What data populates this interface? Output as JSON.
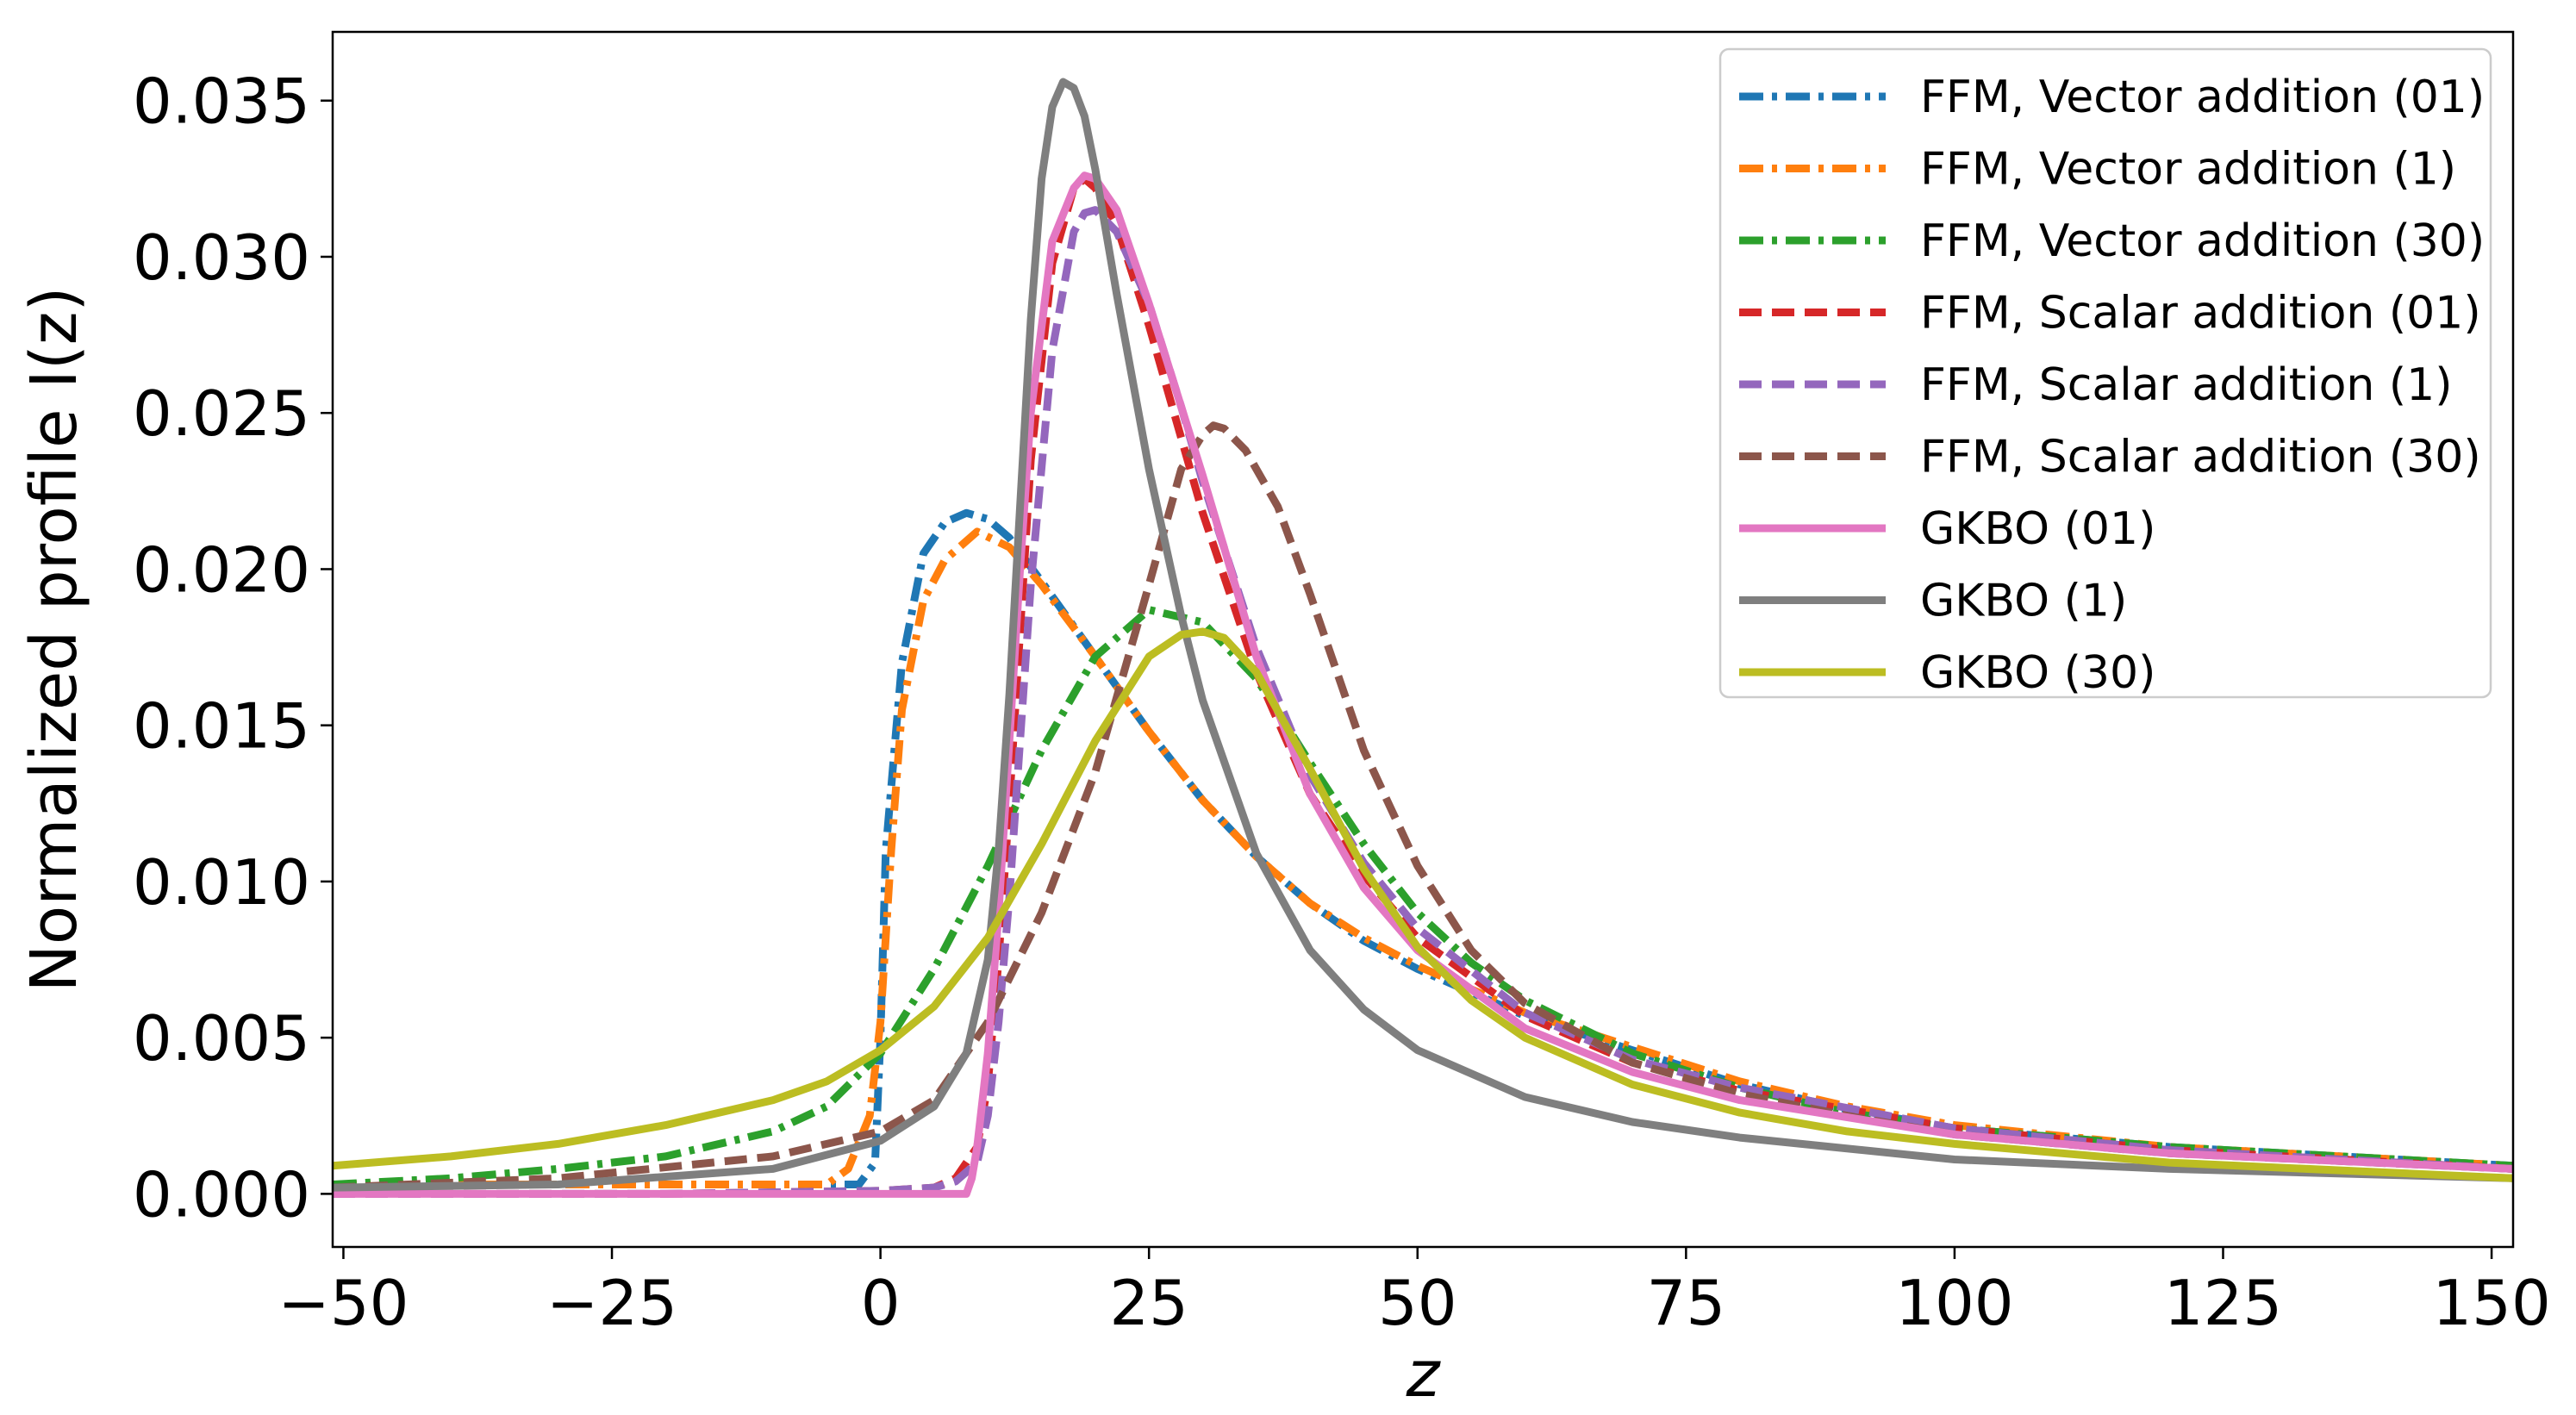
{
  "chart_data": {
    "type": "line",
    "title": "",
    "xlabel": "z",
    "ylabel": "Normalized profile I(z)",
    "xlim": [
      -51,
      152
    ],
    "ylim": [
      -0.0017,
      0.0372
    ],
    "xticks": [
      -50,
      -25,
      0,
      25,
      50,
      75,
      100,
      125,
      150
    ],
    "xtick_labels": [
      "−50",
      "−25",
      "0",
      "25",
      "50",
      "75",
      "100",
      "125",
      "150"
    ],
    "yticks": [
      0.0,
      0.005,
      0.01,
      0.015,
      0.02,
      0.025,
      0.03,
      0.035
    ],
    "ytick_labels": [
      "0.000",
      "0.005",
      "0.010",
      "0.015",
      "0.020",
      "0.025",
      "0.030",
      "0.035"
    ],
    "grid": false,
    "legend_position": "top-right",
    "series": [
      {
        "name": "FFM, Vector addition (01)",
        "color": "#1f77b4",
        "dash": "dashdot",
        "x": [
          -51,
          -30,
          -10,
          -2,
          -0.5,
          0,
          0.5,
          2,
          4,
          6,
          8,
          10,
          12,
          15,
          20,
          25,
          30,
          35,
          40,
          45,
          50,
          60,
          70,
          80,
          90,
          100,
          120,
          152
        ],
        "y": [
          0.0003,
          0.0003,
          0.0003,
          0.0003,
          0.001,
          0.005,
          0.011,
          0.017,
          0.0205,
          0.0215,
          0.0218,
          0.0216,
          0.021,
          0.0196,
          0.0172,
          0.0148,
          0.0126,
          0.0108,
          0.0093,
          0.0081,
          0.0072,
          0.0057,
          0.0046,
          0.0035,
          0.0027,
          0.0021,
          0.0015,
          0.0009
        ]
      },
      {
        "name": "FFM, Vector addition (1)",
        "color": "#ff7f0e",
        "dash": "dashdot",
        "x": [
          -51,
          -30,
          -10,
          -5,
          -3,
          -1,
          0,
          1,
          2,
          4,
          6,
          9,
          12,
          15,
          20,
          25,
          30,
          35,
          40,
          45,
          50,
          60,
          70,
          80,
          90,
          100,
          120,
          152
        ],
        "y": [
          0.0003,
          0.0003,
          0.0003,
          0.0003,
          0.0008,
          0.0025,
          0.0055,
          0.011,
          0.0155,
          0.019,
          0.0203,
          0.0212,
          0.0207,
          0.0195,
          0.0172,
          0.0148,
          0.0126,
          0.0108,
          0.0093,
          0.0082,
          0.0073,
          0.0058,
          0.0047,
          0.0036,
          0.0028,
          0.0022,
          0.0015,
          0.0009
        ]
      },
      {
        "name": "FFM, Vector addition (30)",
        "color": "#2ca02c",
        "dash": "dashdot",
        "x": [
          -51,
          -40,
          -30,
          -20,
          -10,
          -5,
          0,
          5,
          10,
          15,
          20,
          25,
          30,
          35,
          40,
          45,
          50,
          55,
          60,
          70,
          80,
          90,
          100,
          120,
          152
        ],
        "y": [
          0.0003,
          0.0005,
          0.0008,
          0.0012,
          0.002,
          0.0028,
          0.0045,
          0.0072,
          0.0105,
          0.0142,
          0.0172,
          0.0187,
          0.0183,
          0.0165,
          0.0138,
          0.0112,
          0.009,
          0.0074,
          0.0062,
          0.0045,
          0.0034,
          0.0026,
          0.0021,
          0.0015,
          0.0009
        ]
      },
      {
        "name": "FFM, Scalar addition (01)",
        "color": "#d62728",
        "dash": "dashed",
        "x": [
          -51,
          -20,
          0,
          5,
          7,
          9,
          10,
          11,
          12,
          13,
          14,
          16,
          18,
          19,
          20,
          22,
          25,
          28,
          30,
          35,
          40,
          45,
          50,
          60,
          70,
          80,
          100,
          120,
          152
        ],
        "y": [
          0.0,
          0.0,
          0.0001,
          0.0002,
          0.0005,
          0.0015,
          0.0035,
          0.0075,
          0.0125,
          0.018,
          0.0235,
          0.0298,
          0.0322,
          0.0325,
          0.0322,
          0.031,
          0.0278,
          0.0242,
          0.0218,
          0.0167,
          0.0128,
          0.0102,
          0.0082,
          0.0057,
          0.0042,
          0.0033,
          0.0021,
          0.0014,
          0.0008
        ]
      },
      {
        "name": "FFM, Scalar addition (1)",
        "color": "#9467bd",
        "dash": "dashed",
        "x": [
          -51,
          -20,
          0,
          5,
          7,
          9,
          10,
          11,
          12,
          13,
          14,
          16,
          18,
          19,
          20,
          22,
          25,
          28,
          30,
          35,
          40,
          45,
          50,
          60,
          70,
          80,
          100,
          120,
          152
        ],
        "y": [
          0.0,
          0.0,
          0.0001,
          0.0002,
          0.0004,
          0.001,
          0.0025,
          0.0055,
          0.0095,
          0.0145,
          0.0195,
          0.027,
          0.0308,
          0.0314,
          0.0315,
          0.0308,
          0.0285,
          0.0252,
          0.0228,
          0.0175,
          0.0134,
          0.0106,
          0.0085,
          0.0058,
          0.0043,
          0.0034,
          0.0021,
          0.0014,
          0.0008
        ]
      },
      {
        "name": "FFM, Scalar addition (30)",
        "color": "#8c564b",
        "dash": "dashed",
        "x": [
          -51,
          -30,
          -10,
          0,
          5,
          10,
          15,
          20,
          25,
          28,
          30,
          31,
          32,
          34,
          37,
          40,
          45,
          50,
          55,
          60,
          70,
          80,
          90,
          100,
          120,
          152
        ],
        "y": [
          0.0002,
          0.0005,
          0.0012,
          0.002,
          0.003,
          0.0055,
          0.009,
          0.0135,
          0.0195,
          0.0232,
          0.0243,
          0.0246,
          0.0245,
          0.0238,
          0.022,
          0.0192,
          0.0142,
          0.0105,
          0.0078,
          0.0061,
          0.0042,
          0.0032,
          0.0025,
          0.0019,
          0.0013,
          0.0008
        ]
      },
      {
        "name": "GKBO (01)",
        "color": "#e377c2",
        "dash": "solid",
        "x": [
          -51,
          -20,
          0,
          5,
          8,
          8.5,
          9,
          10,
          11,
          12,
          13,
          14,
          16,
          18,
          19,
          20,
          22,
          25,
          28,
          30,
          35,
          40,
          45,
          50,
          60,
          70,
          80,
          100,
          120,
          152
        ],
        "y": [
          0.0,
          0.0,
          0.0,
          0.0,
          0.0,
          0.0005,
          0.0015,
          0.0045,
          0.009,
          0.0145,
          0.02,
          0.025,
          0.0305,
          0.0322,
          0.0326,
          0.0325,
          0.0315,
          0.0285,
          0.0252,
          0.023,
          0.0172,
          0.0128,
          0.0098,
          0.0078,
          0.0053,
          0.0039,
          0.003,
          0.0019,
          0.0013,
          0.0008
        ]
      },
      {
        "name": "GKBO (1)",
        "color": "#7f7f7f",
        "dash": "solid",
        "x": [
          -51,
          -30,
          -10,
          0,
          5,
          8,
          10,
          11,
          12,
          13,
          14,
          15,
          16,
          17,
          18,
          19,
          20,
          22,
          25,
          28,
          30,
          35,
          40,
          45,
          50,
          60,
          70,
          80,
          100,
          120,
          152
        ],
        "y": [
          0.0002,
          0.0003,
          0.0008,
          0.0017,
          0.0028,
          0.0045,
          0.0075,
          0.011,
          0.016,
          0.022,
          0.028,
          0.0325,
          0.0348,
          0.0356,
          0.0354,
          0.0345,
          0.0328,
          0.0288,
          0.0232,
          0.0185,
          0.0158,
          0.0109,
          0.0078,
          0.0059,
          0.0046,
          0.0031,
          0.0023,
          0.0018,
          0.0011,
          0.0008,
          0.0005
        ]
      },
      {
        "name": "GKBO (30)",
        "color": "#bcbd22",
        "dash": "solid",
        "x": [
          -51,
          -40,
          -30,
          -20,
          -10,
          -5,
          0,
          5,
          10,
          15,
          20,
          25,
          28,
          30,
          32,
          35,
          40,
          45,
          50,
          55,
          60,
          70,
          80,
          90,
          100,
          120,
          152
        ],
        "y": [
          0.0009,
          0.0012,
          0.0016,
          0.0022,
          0.003,
          0.0036,
          0.0046,
          0.006,
          0.0082,
          0.0112,
          0.0145,
          0.0172,
          0.0179,
          0.018,
          0.0178,
          0.0167,
          0.0136,
          0.0104,
          0.0079,
          0.0062,
          0.005,
          0.0035,
          0.0026,
          0.002,
          0.0016,
          0.001,
          0.0005
        ]
      }
    ]
  }
}
